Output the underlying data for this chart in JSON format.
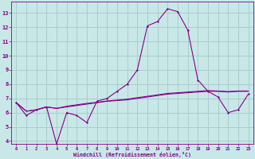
{
  "xlabel": "Windchill (Refroidissement éolien,°C)",
  "xlim": [
    -0.5,
    23.5
  ],
  "ylim": [
    3.8,
    13.8
  ],
  "yticks": [
    4,
    5,
    6,
    7,
    8,
    9,
    10,
    11,
    12,
    13
  ],
  "xticks": [
    0,
    1,
    2,
    3,
    4,
    5,
    6,
    7,
    8,
    9,
    10,
    11,
    12,
    13,
    14,
    15,
    16,
    17,
    18,
    19,
    20,
    21,
    22,
    23
  ],
  "bg_color": "#c8e8e8",
  "line_color": "#880088",
  "grid_color": "#aacccc",
  "main_line_x": [
    0,
    1,
    2,
    3,
    4,
    5,
    6,
    7,
    8,
    9,
    10,
    11,
    12,
    13,
    14,
    15,
    16,
    17,
    18,
    19,
    20,
    21,
    22,
    23
  ],
  "main_line_y": [
    6.7,
    5.8,
    6.2,
    6.4,
    3.8,
    6.0,
    5.8,
    5.3,
    6.8,
    7.0,
    7.5,
    8.0,
    9.0,
    12.1,
    12.4,
    13.3,
    13.1,
    11.8,
    8.3,
    7.5,
    7.1,
    6.0,
    6.2,
    7.3
  ],
  "line2_x": [
    0,
    1,
    2,
    3,
    4,
    5,
    6,
    7,
    8,
    9,
    10,
    11,
    12,
    13,
    14,
    15,
    16,
    17,
    18,
    19,
    20,
    21,
    22,
    23
  ],
  "line2_y": [
    6.7,
    6.1,
    6.2,
    6.4,
    6.3,
    6.4,
    6.5,
    6.6,
    6.7,
    6.8,
    6.85,
    6.9,
    7.0,
    7.1,
    7.2,
    7.3,
    7.35,
    7.4,
    7.45,
    7.5,
    7.5,
    7.45,
    7.5,
    7.5
  ],
  "line3_x": [
    0,
    1,
    2,
    3,
    4,
    5,
    6,
    7,
    8,
    9,
    10,
    11,
    12,
    13,
    14,
    15,
    16,
    17,
    18,
    19,
    20,
    21,
    22,
    23
  ],
  "line3_y": [
    6.7,
    6.1,
    6.2,
    6.4,
    6.3,
    6.45,
    6.55,
    6.65,
    6.72,
    6.82,
    6.88,
    6.95,
    7.05,
    7.15,
    7.25,
    7.35,
    7.4,
    7.45,
    7.5,
    7.55,
    7.52,
    7.48,
    7.52,
    7.52
  ]
}
